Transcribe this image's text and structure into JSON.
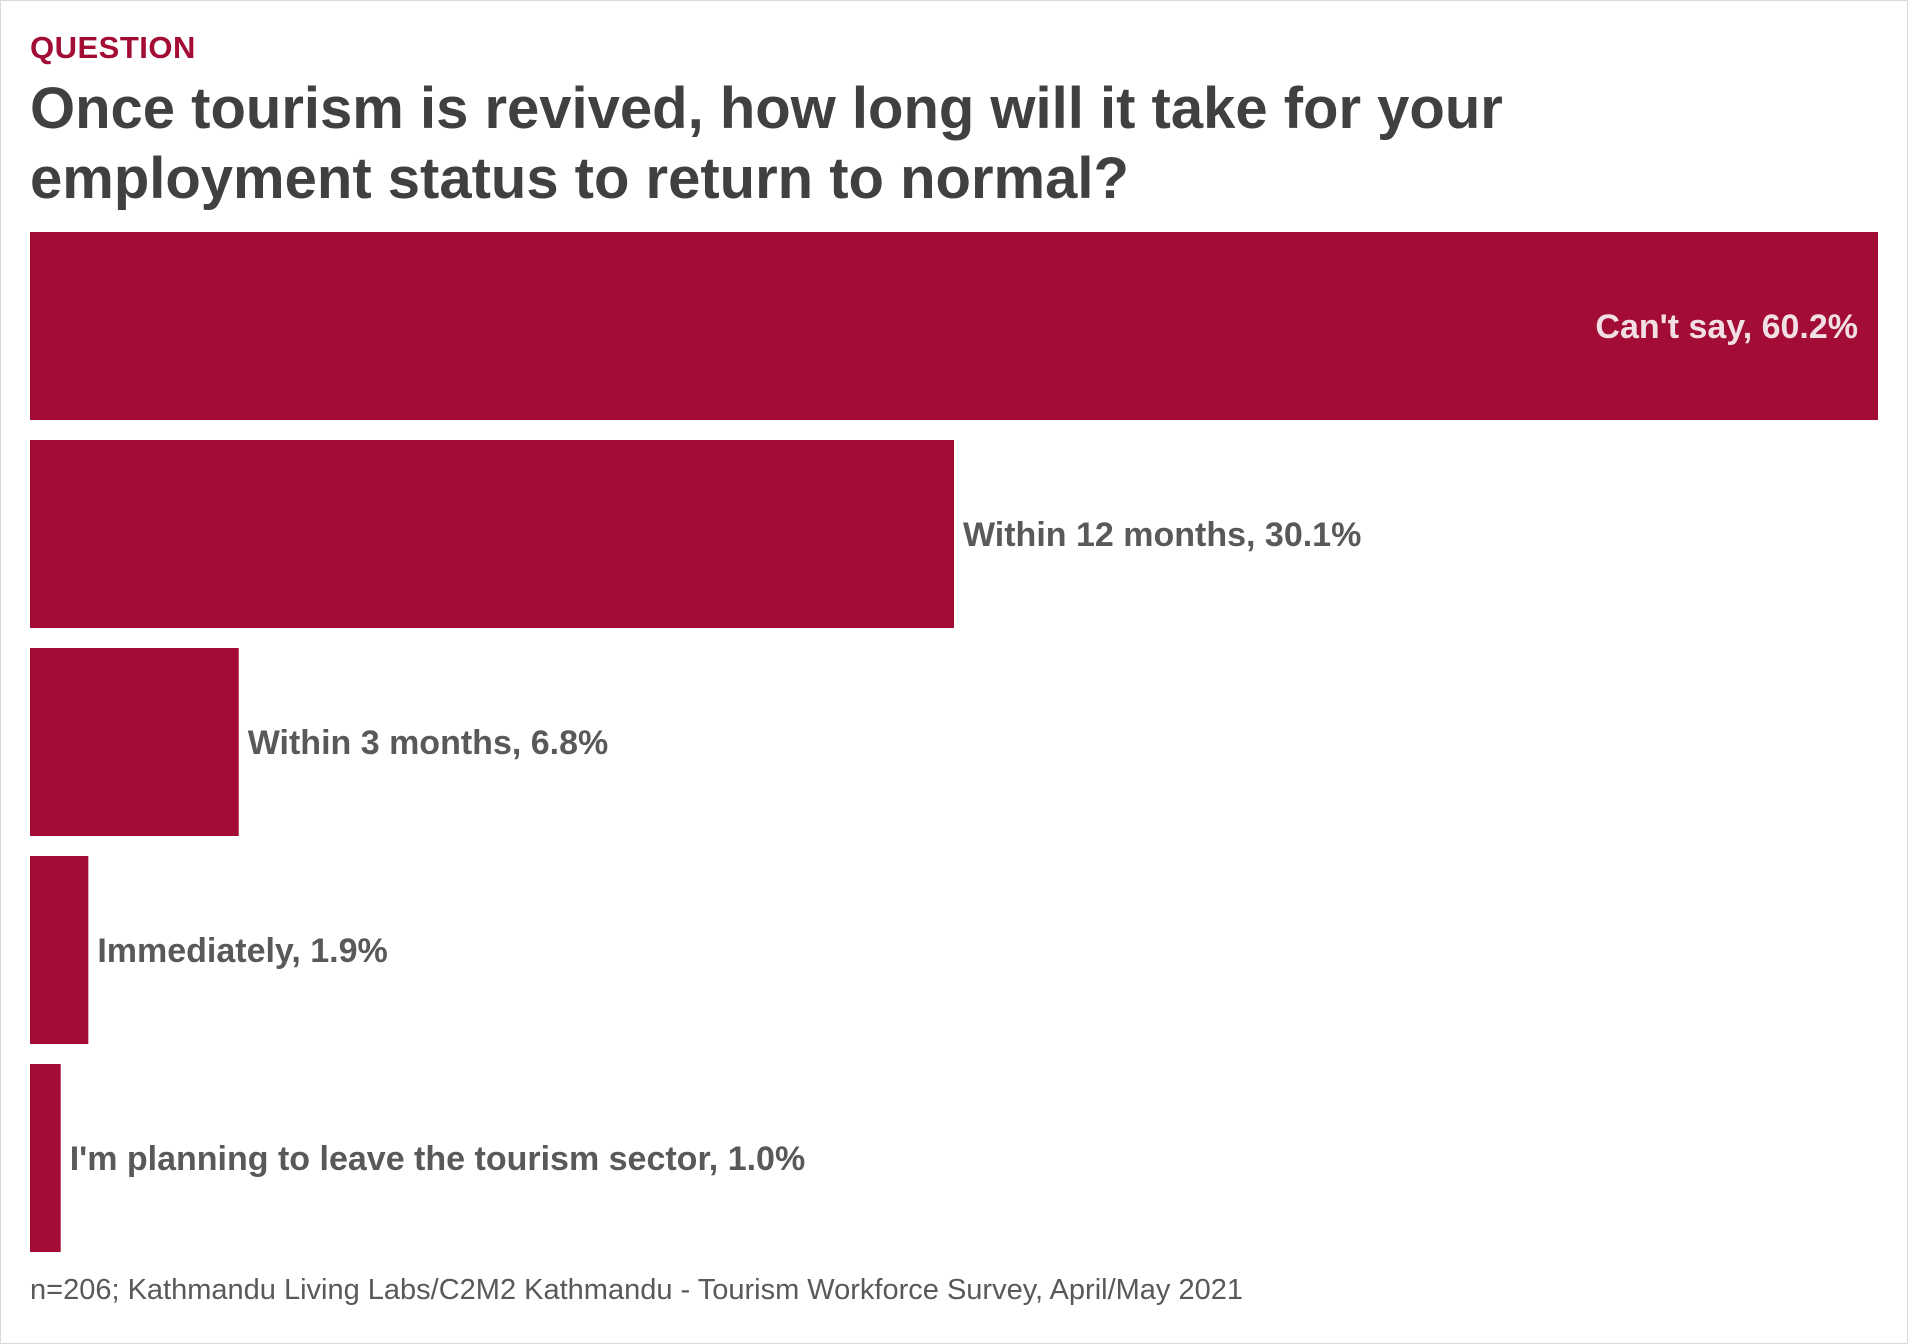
{
  "kicker": "QUESTION",
  "source": "n=206; Kathmandu Living Labs/C2M2 Kathmandu - Tourism Workforce Survey, April/May 2021",
  "colors": {
    "bar": "#a20c35",
    "label_outside": "#595959",
    "label_inside": "#f2dfe4"
  },
  "chart_data": {
    "type": "bar",
    "orientation": "horizontal",
    "title": "Once tourism is revived, how long will it take for your employment status to return to normal?",
    "categories": [
      "Can't say",
      "Within 12 months",
      "Within 3 months",
      "Immediately",
      "I'm planning to leave the tourism sector"
    ],
    "values": [
      60.2,
      30.1,
      6.8,
      1.9,
      1.0
    ],
    "labels": [
      "Can't say, 60.2%",
      "Within 12 months, 30.1%",
      "Within 3 months, 6.8%",
      "Immediately, 1.9%",
      "I'm planning to leave the tourism sector, 1.0%"
    ],
    "xlim": [
      0,
      60.2
    ],
    "grid": false,
    "legend": "none"
  }
}
